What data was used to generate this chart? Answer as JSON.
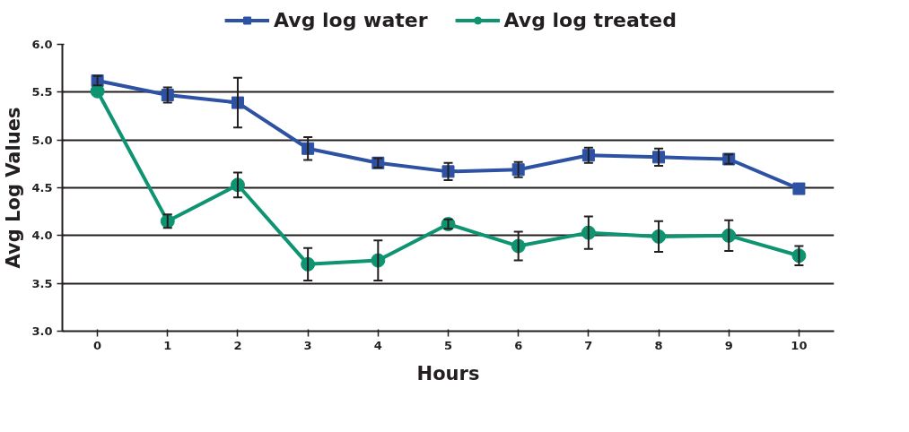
{
  "chart_data": {
    "type": "line",
    "xlabel": "Hours",
    "ylabel": "Avg Log Values",
    "categories": [
      "0",
      "1",
      "2",
      "3",
      "4",
      "5",
      "6",
      "7",
      "8",
      "9",
      "10"
    ],
    "series": [
      {
        "name": "Avg log water",
        "color": "#2e52a3",
        "marker": "square",
        "values": [
          5.62,
          5.47,
          5.39,
          4.91,
          4.76,
          4.67,
          4.69,
          4.84,
          4.82,
          4.8,
          4.49
        ],
        "errors": [
          0.05,
          0.08,
          0.26,
          0.12,
          0.05,
          0.09,
          0.08,
          0.08,
          0.09,
          0.05,
          null
        ]
      },
      {
        "name": "Avg log treated",
        "color": "#0e9470",
        "marker": "circle",
        "values": [
          5.51,
          4.15,
          4.53,
          3.7,
          3.74,
          4.12,
          3.89,
          4.03,
          3.99,
          4.0,
          3.79
        ],
        "errors": [
          null,
          0.07,
          0.13,
          0.17,
          0.21,
          0.05,
          0.15,
          0.17,
          0.16,
          0.16,
          0.1
        ]
      }
    ],
    "ylim": [
      3.0,
      6.0
    ],
    "yticks": [
      {
        "value": 3.0,
        "label": "3.0"
      },
      {
        "value": 3.5,
        "label": "3.5"
      },
      {
        "value": 4.0,
        "label": "4.0"
      },
      {
        "value": 4.5,
        "label": "4.5"
      },
      {
        "value": 5.0,
        "label": "5.0"
      },
      {
        "value": 5.5,
        "label": "5.5"
      },
      {
        "value": 6.0,
        "label": "6.0"
      }
    ],
    "grid": "y",
    "legend": "top",
    "line_style": "solid"
  }
}
